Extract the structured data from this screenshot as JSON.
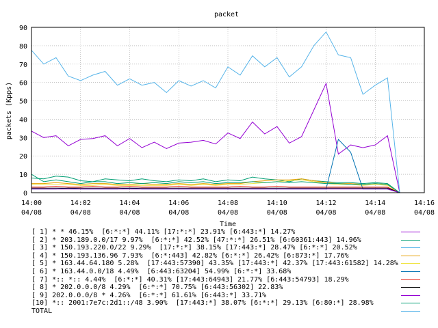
{
  "chart_data": {
    "type": "line",
    "title": "packet",
    "xlabel": "Time",
    "ylabel": "packets (Kpps)",
    "ylim": [
      0,
      90
    ],
    "yticks": [
      0,
      10,
      20,
      30,
      40,
      50,
      60,
      70,
      80,
      90
    ],
    "xlim": [
      "14:00",
      "14:16"
    ],
    "xticks": [
      {
        "time": "14:00",
        "date": "04/08"
      },
      {
        "time": "14:02",
        "date": "04/08"
      },
      {
        "time": "14:04",
        "date": "04/08"
      },
      {
        "time": "14:06",
        "date": "04/08"
      },
      {
        "time": "14:08",
        "date": "04/08"
      },
      {
        "time": "14:10",
        "date": "04/08"
      },
      {
        "time": "14:12",
        "date": "04/08"
      },
      {
        "time": "14:14",
        "date": "04/08"
      },
      {
        "time": "14:16",
        "date": "04/08"
      }
    ],
    "grid": true,
    "legend_position": "bottom",
    "x_minutes": [
      0,
      0.5,
      1,
      1.5,
      2,
      2.5,
      3,
      3.5,
      4,
      4.5,
      5,
      5.5,
      6,
      6.5,
      7,
      7.5,
      8,
      8.5,
      9,
      9.5,
      10,
      10.5,
      11,
      11.5,
      12,
      12.5,
      13,
      13.5,
      14,
      14.5,
      15
    ],
    "series": [
      {
        "label": "[ 1] * * 46.15%  [6:*:*] 44.11% [17:*:*] 23.91% [6:443:*] 14.27%",
        "color": "#9400d3",
        "values": [
          33.5,
          30,
          31,
          25.5,
          29,
          29.5,
          31,
          25.5,
          29.5,
          24.5,
          27.5,
          24,
          27,
          27.5,
          28.5,
          26.5,
          32.5,
          29.5,
          38.5,
          32,
          36,
          27,
          30.5,
          45,
          59.5,
          21,
          26,
          24.5,
          26,
          31,
          0
        ]
      },
      {
        "label": "[ 2] * 203.189.0.0/17 9.97%  [6:*:*] 42.52% [47:*:*] 26.51% [6:60361:443] 14.96%",
        "color": "#009e73",
        "values": [
          8,
          7.5,
          9,
          8.5,
          6.5,
          6,
          7.5,
          7,
          6.5,
          7.5,
          6.5,
          6,
          7,
          6.5,
          7.5,
          6,
          7,
          6.5,
          8.5,
          7.5,
          7,
          6,
          7.5,
          6.5,
          6,
          5.5,
          5.5,
          5,
          5.5,
          5,
          0
        ]
      },
      {
        "label": "[ 3] * 150.193.220.0/22 9.29%  [17:*:*] 38.15% [17:443:*] 28.47% [6:*:*] 20.52%",
        "color": "#56b4e9",
        "values": [
          77.5,
          70,
          73.5,
          63.5,
          61,
          64,
          66,
          58.5,
          62,
          58.5,
          60,
          54.5,
          61,
          58,
          61,
          57,
          68.5,
          64,
          74.5,
          68.5,
          73.5,
          63,
          68.5,
          80,
          87.5,
          75,
          73.5,
          53.5,
          58.5,
          62.5,
          0
        ]
      },
      {
        "label": "[ 4] * 150.193.136.96 7.93%  [6:*:443] 42.82% [6:*:*] 26.42% [6:873:*] 17.76%",
        "color": "#e69f00",
        "values": [
          5,
          5,
          5.5,
          5,
          4.5,
          5,
          5,
          4.5,
          4.5,
          5,
          4.5,
          4.5,
          5,
          4.5,
          5,
          4.5,
          5,
          5,
          6,
          6.5,
          7,
          7,
          7.5,
          6.5,
          5.5,
          5,
          5,
          4.5,
          5,
          4.5,
          0
        ]
      },
      {
        "label": "[ 5] * 163.44.64.180 5.28%  [17:443:57390] 43.35% [17:443:*] 42.37% [17:443:61582] 14.28%",
        "color": "#f0e442",
        "values": [
          4.5,
          4.5,
          4.5,
          4.5,
          4,
          4,
          4.5,
          4,
          4,
          4,
          4,
          4,
          4.5,
          4,
          4.5,
          4,
          4.5,
          4.5,
          5,
          5.5,
          6,
          6.5,
          7,
          6,
          5,
          4.5,
          4.5,
          4,
          4.5,
          4,
          0
        ]
      },
      {
        "label": "[ 6] * 163.44.0.0/18 4.49%  [6:443:63204] 54.99% [6:*:*] 33.68%",
        "color": "#0072b2",
        "values": [
          2,
          2,
          2,
          2.5,
          2,
          2,
          2,
          2,
          2.5,
          2,
          2,
          2,
          2,
          2,
          2,
          2,
          2,
          2,
          2,
          2,
          2,
          2,
          2,
          2,
          2,
          29,
          22,
          2,
          2,
          2,
          0
        ]
      },
      {
        "label": "[ 7] *:: *:: 4.44%  [6:*:*] 40.31% [17:443:64943] 21.77% [6:443:54793] 18.29%",
        "color": "#e51e10",
        "values": [
          3,
          3,
          3.5,
          3,
          3,
          3.5,
          3,
          3,
          3.5,
          3,
          3,
          3,
          3.5,
          3,
          3,
          3,
          3,
          3.5,
          3,
          3,
          3.5,
          3,
          3,
          3,
          3,
          3,
          3,
          3,
          3,
          3,
          0
        ]
      },
      {
        "label": "[ 8] * 202.0.0.0/8 4.29%  [6:*:*] 70.75% [6:443:56302] 22.83%",
        "color": "#000000",
        "values": [
          2.5,
          2.5,
          2.5,
          2.5,
          2.5,
          2.5,
          2.5,
          2.5,
          2.5,
          2.5,
          2.5,
          2.5,
          2.5,
          2.5,
          2.5,
          2.5,
          2.5,
          2.5,
          2.5,
          2.5,
          2.5,
          2.5,
          2.5,
          2.5,
          2.5,
          2.5,
          2.5,
          2.5,
          2.5,
          2.5,
          0
        ]
      },
      {
        "label": "[ 9] 202.0.0.0/8 * 4.26%  [6:*:*] 61.61% [6:443:*] 33.71%",
        "color": "#9400d3",
        "values": [
          2,
          2,
          2,
          2,
          2,
          2,
          2,
          2,
          2,
          2,
          2,
          2,
          2,
          2,
          2,
          2,
          2,
          2,
          2,
          2,
          2,
          2,
          2,
          2,
          2,
          2,
          2,
          2,
          2,
          2,
          0
        ]
      },
      {
        "label": "[10] *:: 2001:7e7c:2d1::/48 3.90%  [17:443:*] 38.07% [6:*:*] 29.13% [6:80:*] 28.98%",
        "color": "#009e73",
        "values": [
          10,
          6,
          7,
          6,
          5,
          6,
          6,
          5,
          5.5,
          5,
          5.5,
          5,
          6,
          5.5,
          6,
          5,
          5.5,
          5.5,
          6,
          5.5,
          6,
          5.5,
          6,
          5.5,
          5,
          5,
          4.5,
          4.5,
          5,
          4.5,
          0
        ]
      },
      {
        "label": "TOTAL",
        "color": "#56b4e9",
        "values": []
      }
    ]
  }
}
